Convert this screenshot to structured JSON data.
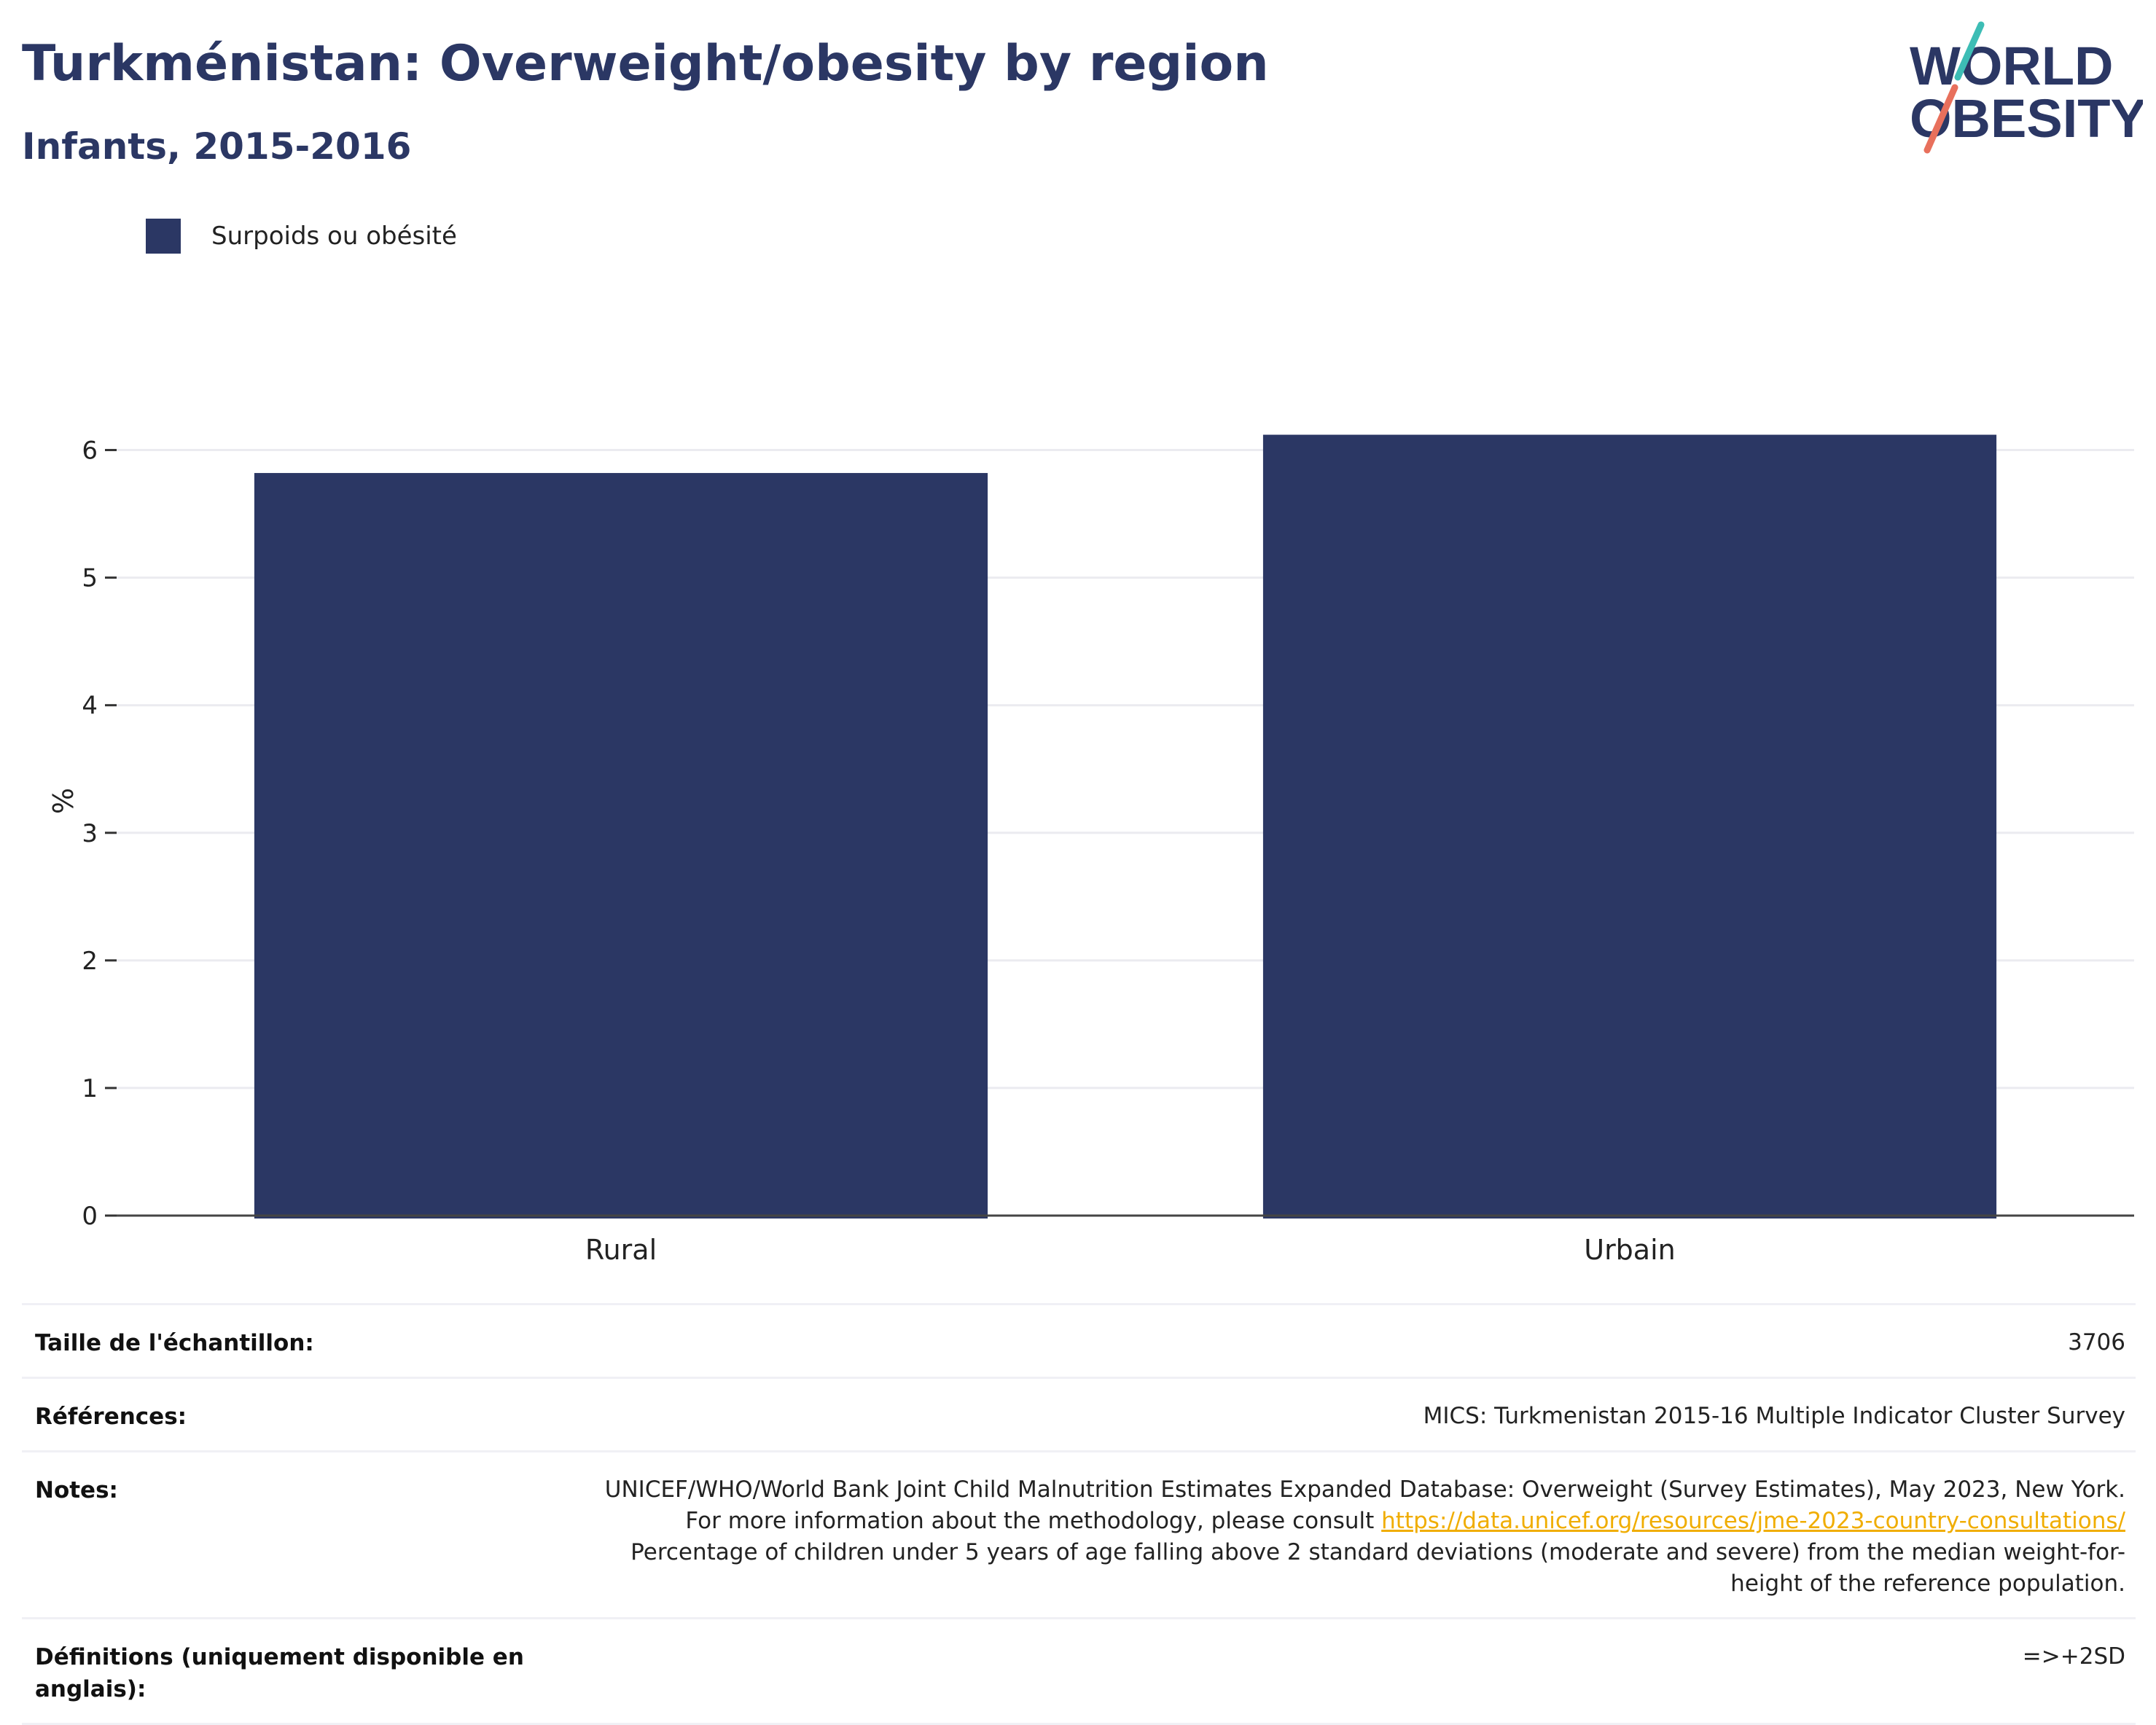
{
  "header": {
    "title": "Turkménistan: Overweight/obesity by region",
    "subtitle": "Infants, 2015-2016"
  },
  "logo": {
    "line1": "WORLD",
    "line2": "OBESITY",
    "colors": {
      "text": "#2b3764",
      "slash_top": "#3dbdb5",
      "slash_bottom": "#e8705c"
    }
  },
  "chart_data": {
    "type": "bar",
    "categories": [
      "Rural",
      "Urbain"
    ],
    "series": [
      {
        "name": "Surpoids ou obésité",
        "values": [
          5.82,
          6.12
        ],
        "color": "#2b3764"
      }
    ],
    "title": "",
    "xlabel": "",
    "ylabel": "%",
    "ylim": [
      0,
      6.5
    ],
    "yticks": [
      0,
      1,
      2,
      3,
      4,
      5,
      6
    ],
    "grid": true,
    "legend_position": "top-left"
  },
  "info": {
    "sample_label": "Taille de l'échantillon:",
    "sample_value": "3706",
    "references_label": "Références:",
    "references_value": "MICS: Turkmenistan 2015-16 Multiple Indicator Cluster Survey",
    "notes_label": "Notes:",
    "notes_text_1": "UNICEF/WHO/World Bank Joint Child Malnutrition Estimates Expanded Database: Overweight (Survey Estimates), May 2023, New York. For more information about the methodology, please consult ",
    "notes_link": "https://data.unicef.org/resources/jme-2023-country-consultations/",
    "notes_text_2": "Percentage of children under 5 years of age falling above 2 standard deviations (moderate and severe) from the median weight-for-height of the reference population.",
    "definitions_label": "Définitions (uniquement disponible en anglais):",
    "definitions_value": "=>+2SD"
  }
}
